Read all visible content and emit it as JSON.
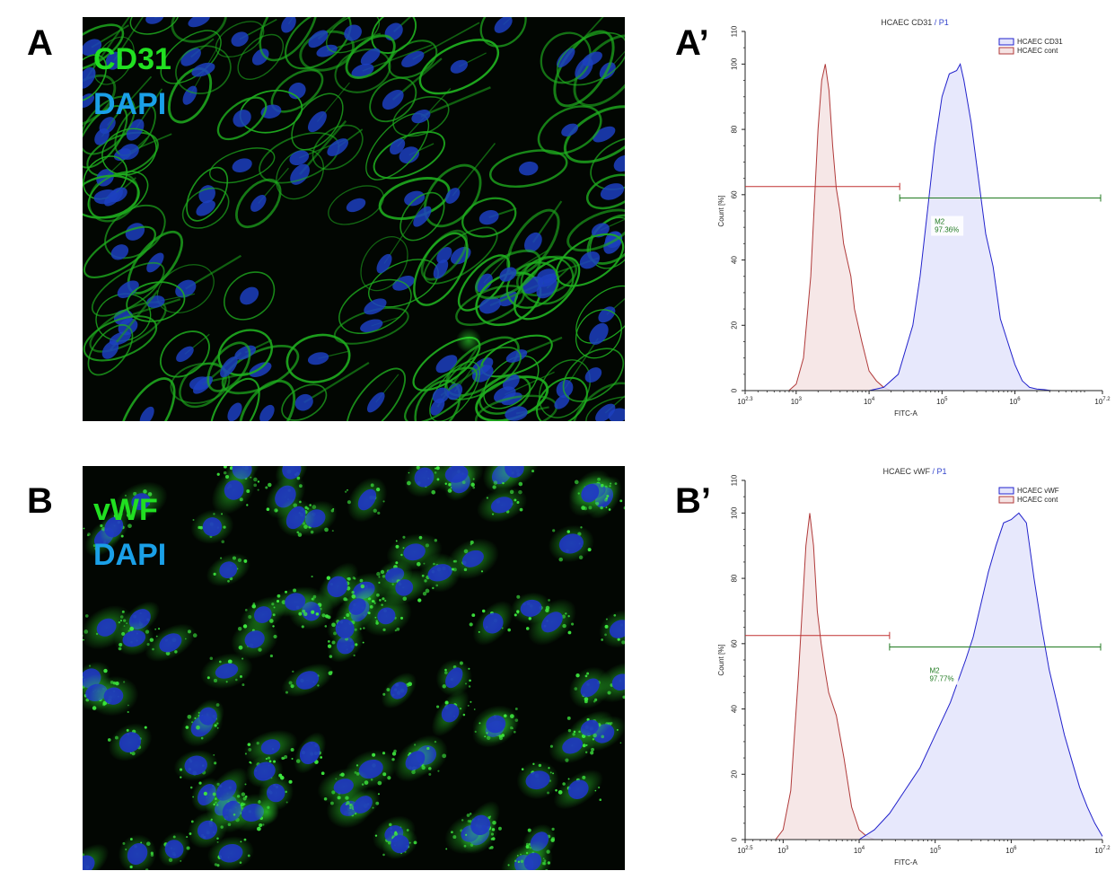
{
  "panels": {
    "a": {
      "letter": "A",
      "stain1": "CD31",
      "stain2": "DAPI"
    },
    "b": {
      "letter": "B",
      "stain1": "vWF",
      "stain2": "DAPI"
    }
  },
  "colors": {
    "green_stain": "#21e021",
    "blue_stain": "#1aa0e8",
    "sample_line": "#2222cc",
    "sample_fill": "#e3e4fb",
    "control_line": "#b03a3a",
    "control_fill": "#f5e3e3",
    "marker_gate": "#207a20",
    "control_gate": "#c03030"
  },
  "chart_data": [
    {
      "letter": "A’",
      "type": "area",
      "title_main": "HCAEC CD31",
      "title_sep": " / ",
      "title_gate": "P1",
      "xlabel": "FITC-A",
      "ylabel": "Count  [%]",
      "x_scale": "log10",
      "xlim": [
        2.3,
        7.2
      ],
      "ylim": [
        0,
        110
      ],
      "x_ticks": [
        {
          "base": "10",
          "exp": "2.3",
          "value": 2.3
        },
        {
          "base": "10",
          "exp": "3",
          "value": 3
        },
        {
          "base": "10",
          "exp": "4",
          "value": 4
        },
        {
          "base": "10",
          "exp": "5",
          "value": 5
        },
        {
          "base": "10",
          "exp": "6",
          "value": 6
        },
        {
          "base": "10",
          "exp": "7.2",
          "value": 7.2
        }
      ],
      "y_ticks": [
        "0",
        "20",
        "40",
        "60",
        "80",
        "100",
        "110"
      ],
      "legend": [
        "HCAEC CD31",
        "HCAEC cont"
      ],
      "marker": {
        "name": "M2",
        "percent": "97.36%",
        "gate_start_log": 4.42,
        "gate_end_log": 7.2,
        "gate_y": 59
      },
      "control_gate": {
        "gate_start_log": 2.3,
        "gate_end_log": 4.42,
        "gate_y": 62.5
      },
      "series": [
        {
          "name": "HCAEC cont",
          "x_log": [
            2.3,
            2.9,
            3.0,
            3.1,
            3.2,
            3.3,
            3.35,
            3.4,
            3.45,
            3.5,
            3.55,
            3.6,
            3.65,
            3.7,
            3.75,
            3.8,
            3.9,
            4.0,
            4.1,
            4.2,
            4.3,
            7.2
          ],
          "values": [
            0,
            0,
            2,
            10,
            35,
            80,
            95,
            100,
            92,
            75,
            62,
            55,
            45,
            40,
            35,
            25,
            15,
            6,
            3,
            1,
            0,
            0
          ]
        },
        {
          "name": "HCAEC CD31",
          "x_log": [
            2.3,
            4.0,
            4.2,
            4.4,
            4.6,
            4.7,
            4.8,
            4.9,
            5.0,
            5.1,
            5.2,
            5.25,
            5.3,
            5.4,
            5.5,
            5.6,
            5.7,
            5.8,
            5.9,
            6.0,
            6.1,
            6.2,
            6.3,
            6.4,
            6.5,
            7.2
          ],
          "values": [
            0,
            0,
            1,
            5,
            20,
            35,
            55,
            75,
            90,
            97,
            98,
            100,
            95,
            82,
            65,
            48,
            38,
            22,
            15,
            8,
            3,
            1,
            0.5,
            0.3,
            0,
            0
          ]
        }
      ]
    },
    {
      "letter": "B’",
      "type": "area",
      "title_main": "HCAEC vWF",
      "title_sep": " / ",
      "title_gate": "P1",
      "xlabel": "FITC-A",
      "ylabel": "Count  [%]",
      "x_scale": "log10",
      "xlim": [
        2.5,
        7.2
      ],
      "ylim": [
        0,
        110
      ],
      "x_ticks": [
        {
          "base": "10",
          "exp": "2.5",
          "value": 2.5
        },
        {
          "base": "10",
          "exp": "3",
          "value": 3
        },
        {
          "base": "10",
          "exp": "4",
          "value": 4
        },
        {
          "base": "10",
          "exp": "5",
          "value": 5
        },
        {
          "base": "10",
          "exp": "6",
          "value": 6
        },
        {
          "base": "10",
          "exp": "7.2",
          "value": 7.2
        }
      ],
      "y_ticks": [
        "0",
        "20",
        "40",
        "60",
        "80",
        "100",
        "110"
      ],
      "legend": [
        "HCAEC vWF",
        "HCAEC cont"
      ],
      "marker": {
        "name": "M2",
        "percent": "97.77%",
        "gate_start_log": 4.4,
        "gate_end_log": 7.2,
        "gate_y": 59
      },
      "control_gate": {
        "gate_start_log": 2.5,
        "gate_end_log": 4.4,
        "gate_y": 62.5
      },
      "series": [
        {
          "name": "HCAEC cont",
          "x_log": [
            2.5,
            2.9,
            3.0,
            3.1,
            3.2,
            3.3,
            3.35,
            3.4,
            3.45,
            3.5,
            3.55,
            3.6,
            3.7,
            3.8,
            3.9,
            4.0,
            4.1,
            4.2,
            7.2
          ],
          "values": [
            0,
            0,
            3,
            15,
            50,
            90,
            100,
            90,
            70,
            60,
            52,
            45,
            38,
            25,
            10,
            3,
            1,
            0,
            0
          ]
        },
        {
          "name": "HCAEC vWF",
          "x_log": [
            2.5,
            4.0,
            4.2,
            4.4,
            4.6,
            4.8,
            5.0,
            5.2,
            5.4,
            5.5,
            5.6,
            5.7,
            5.8,
            5.9,
            6.0,
            6.1,
            6.2,
            6.3,
            6.4,
            6.5,
            6.6,
            6.7,
            6.8,
            6.9,
            7.0,
            7.1,
            7.2
          ],
          "values": [
            0,
            0,
            3,
            8,
            15,
            22,
            32,
            42,
            55,
            62,
            72,
            82,
            90,
            97,
            98,
            100,
            97,
            80,
            65,
            52,
            42,
            32,
            24,
            16,
            10,
            5,
            1
          ]
        }
      ]
    }
  ]
}
